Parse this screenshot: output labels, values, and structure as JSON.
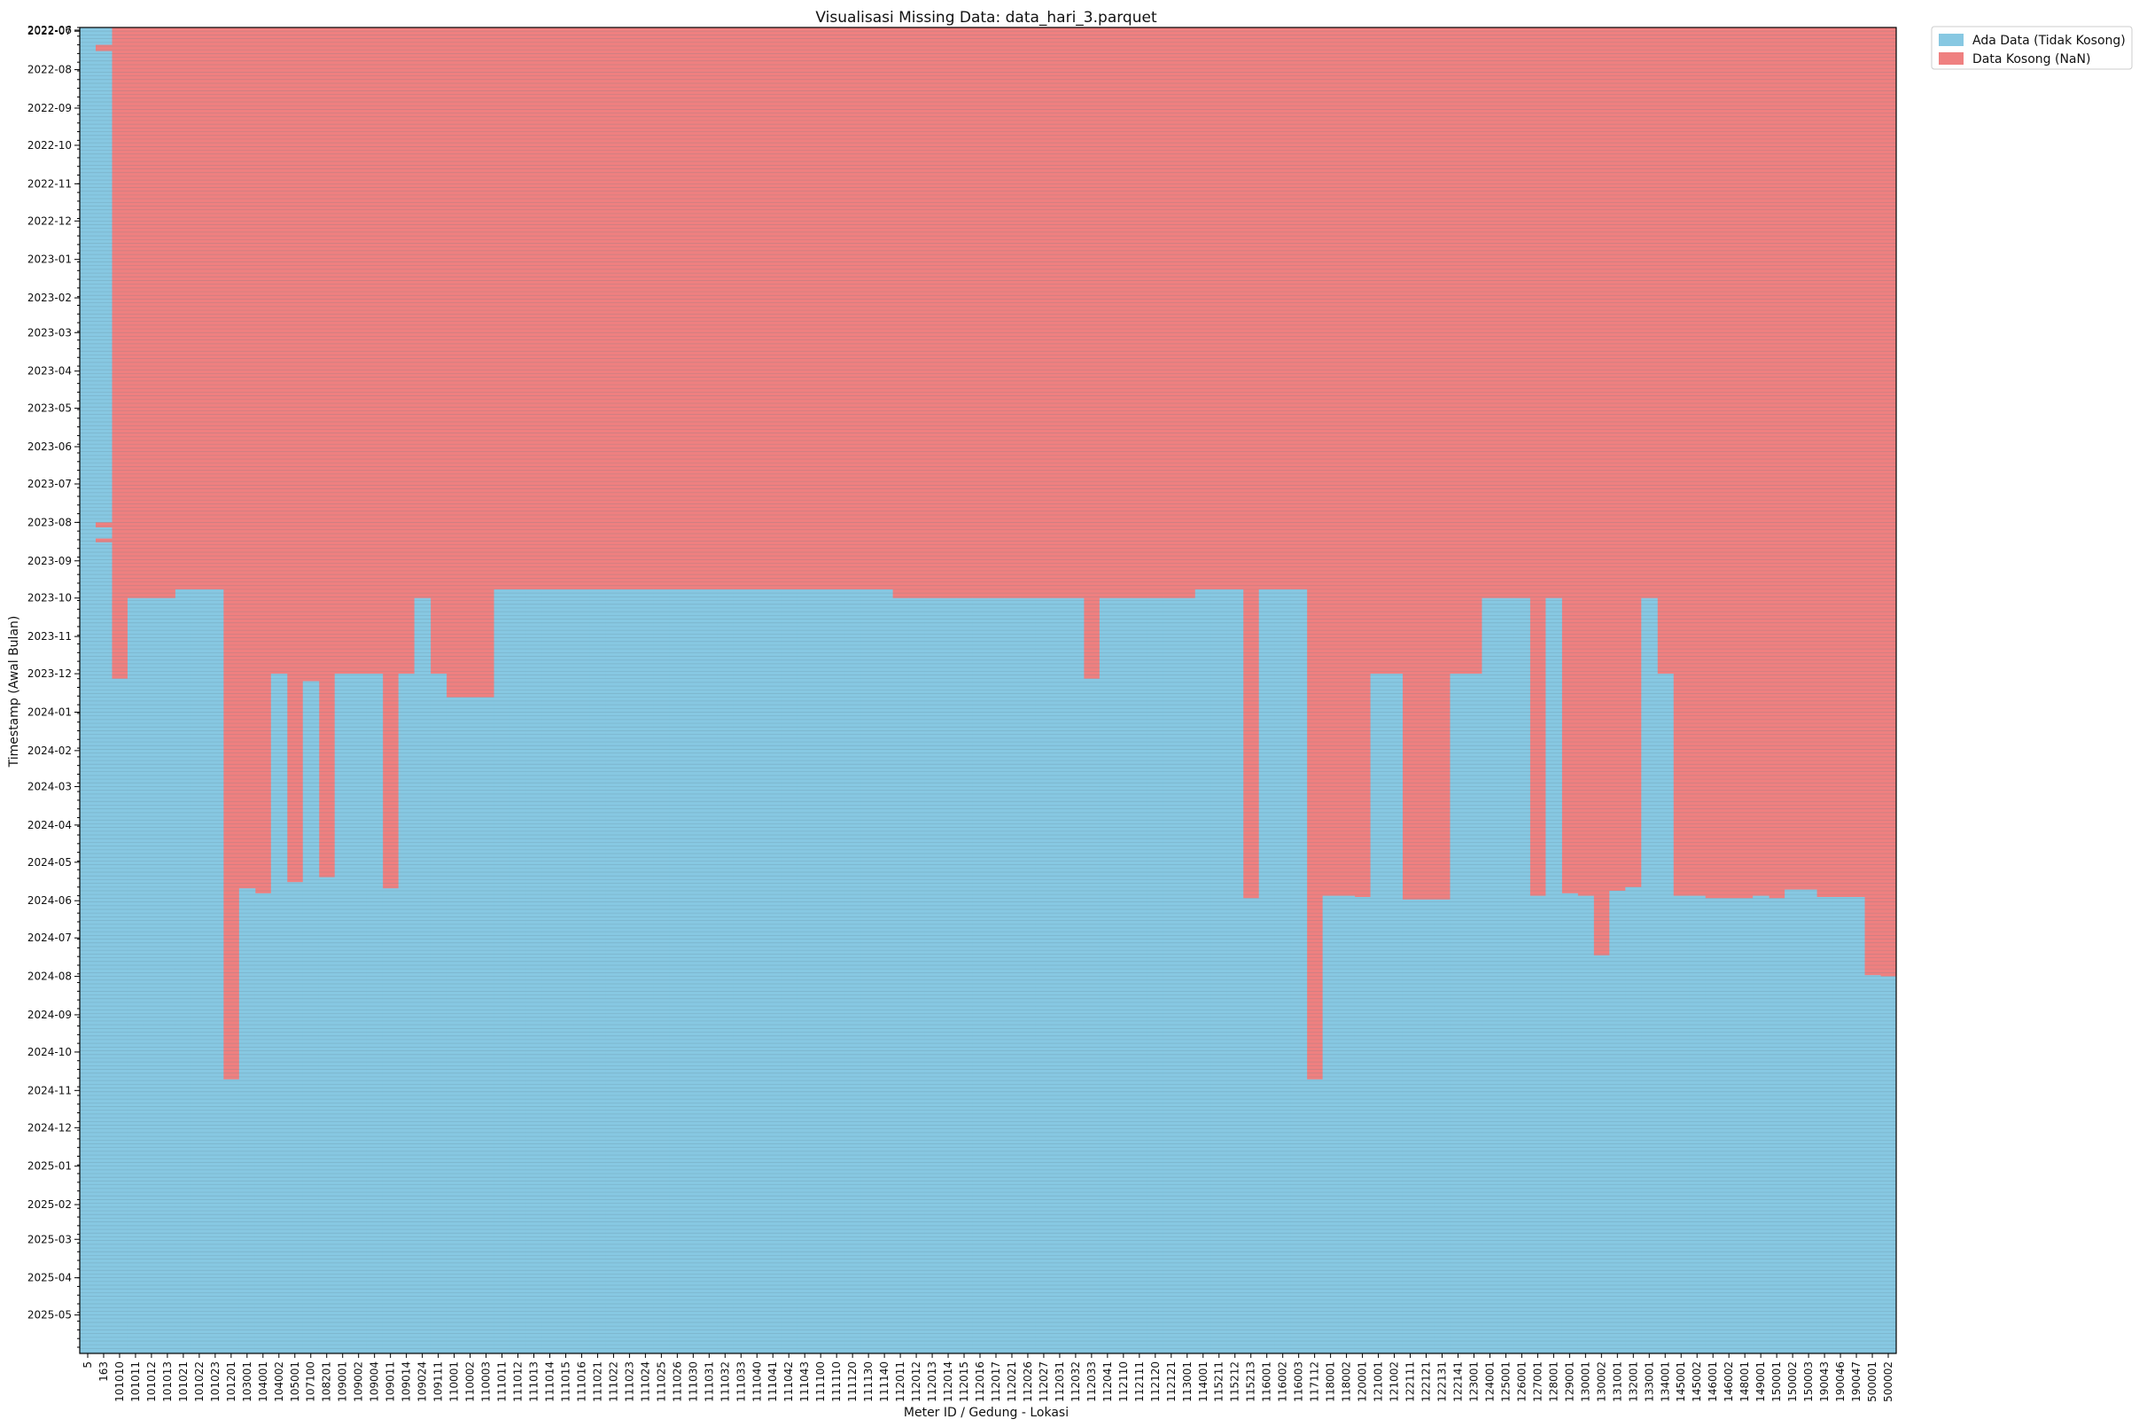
{
  "chart_data": {
    "type": "heatmap",
    "title": "Visualisasi Missing Data: data_hari_3.parquet",
    "xlabel": "Meter ID / Gedung - Lokasi",
    "ylabel": "Timestamp (Awal Bulan)",
    "y_range": [
      "2022-06-28",
      "2025-05-31"
    ],
    "month_ticks": [
      "2022-06",
      "2022-07",
      "2022-08",
      "2022-09",
      "2022-10",
      "2022-11",
      "2022-12",
      "2023-01",
      "2023-02",
      "2023-03",
      "2023-04",
      "2023-05",
      "2023-06",
      "2023-07",
      "2023-08",
      "2023-09",
      "2023-10",
      "2023-11",
      "2023-12",
      "2024-01",
      "2024-02",
      "2024-03",
      "2024-04",
      "2024-05",
      "2024-06",
      "2024-07",
      "2024-08",
      "2024-09",
      "2024-10",
      "2024-11",
      "2024-12",
      "2025-01",
      "2025-02",
      "2025-03",
      "2025-04",
      "2025-05"
    ],
    "columns": [
      "5",
      "163",
      "101010",
      "101011",
      "101012",
      "101013",
      "101021",
      "101022",
      "101023",
      "101201",
      "103001",
      "104001",
      "104002",
      "105001",
      "107100",
      "108201",
      "109001",
      "109002",
      "109004",
      "109011",
      "109014",
      "109024",
      "109111",
      "110001",
      "110002",
      "110003",
      "111011",
      "111012",
      "111013",
      "111014",
      "111015",
      "111016",
      "111021",
      "111022",
      "111023",
      "111024",
      "111025",
      "111026",
      "111030",
      "111031",
      "111032",
      "111033",
      "111040",
      "111041",
      "111042",
      "111043",
      "111100",
      "111110",
      "111120",
      "111130",
      "111140",
      "112011",
      "112012",
      "112013",
      "112014",
      "112015",
      "112016",
      "112017",
      "112021",
      "112026",
      "112027",
      "112031",
      "112032",
      "112033",
      "112041",
      "112110",
      "112111",
      "112120",
      "112121",
      "113001",
      "114001",
      "115211",
      "115212",
      "115213",
      "116001",
      "116002",
      "116003",
      "117112",
      "118001",
      "118002",
      "120001",
      "121001",
      "121002",
      "122111",
      "122121",
      "122131",
      "122141",
      "123001",
      "124001",
      "125001",
      "126001",
      "127001",
      "128001",
      "129001",
      "130001",
      "130002",
      "131001",
      "132001",
      "133001",
      "134001",
      "145001",
      "145002",
      "146001",
      "146002",
      "148001",
      "149001",
      "150001",
      "150002",
      "150003",
      "190043",
      "190046",
      "190047",
      "500001",
      "500002"
    ],
    "data_start": [
      "2022-06-28",
      "2022-06-28",
      "2023-12-05",
      "2023-10-01",
      "2023-10-01",
      "2023-10-01",
      "2023-09-24",
      "2023-09-24",
      "2023-09-24",
      "2024-10-23",
      "2024-05-22",
      "2024-05-26",
      "2023-12-01",
      "2024-05-17",
      "2023-12-07",
      "2024-05-13",
      "2023-12-01",
      "2023-12-01",
      "2023-12-01",
      "2024-05-22",
      "2023-12-01",
      "2023-10-01",
      "2023-12-01",
      "2023-12-20",
      "2023-12-20",
      "2023-12-20",
      "2023-09-24",
      "2023-09-24",
      "2023-09-24",
      "2023-09-24",
      "2023-09-24",
      "2023-09-24",
      "2023-09-24",
      "2023-09-24",
      "2023-09-24",
      "2023-09-24",
      "2023-09-24",
      "2023-09-24",
      "2023-09-24",
      "2023-09-24",
      "2023-09-24",
      "2023-09-24",
      "2023-09-24",
      "2023-09-24",
      "2023-09-24",
      "2023-09-24",
      "2023-09-24",
      "2023-09-24",
      "2023-09-24",
      "2023-09-24",
      "2023-09-24",
      "2023-10-01",
      "2023-10-01",
      "2023-10-01",
      "2023-10-01",
      "2023-10-01",
      "2023-10-01",
      "2023-10-01",
      "2023-10-01",
      "2023-10-01",
      "2023-10-01",
      "2023-10-01",
      "2023-10-01",
      "2023-12-05",
      "2023-10-01",
      "2023-10-01",
      "2023-10-01",
      "2023-10-01",
      "2023-10-01",
      "2023-10-01",
      "2023-09-24",
      "2023-09-24",
      "2023-09-24",
      "2024-05-30",
      "2023-09-24",
      "2023-09-24",
      "2023-09-24",
      "2024-10-23",
      "2024-05-28",
      "2024-05-28",
      "2024-05-29",
      "2023-12-01",
      "2023-12-01",
      "2024-05-31",
      "2024-05-31",
      "2024-05-31",
      "2023-12-01",
      "2023-12-01",
      "2023-10-01",
      "2023-10-01",
      "2023-10-01",
      "2024-05-28",
      "2023-10-01",
      "2024-05-26",
      "2024-05-28",
      "2024-07-15",
      "2024-05-24",
      "2024-05-21",
      "2023-10-01",
      "2023-12-01",
      "2024-05-28",
      "2024-05-28",
      "2024-05-30",
      "2024-05-30",
      "2024-05-30",
      "2024-05-28",
      "2024-05-30",
      "2024-05-23",
      "2024-05-23",
      "2024-05-29",
      "2024-05-29",
      "2024-05-29",
      "2024-07-31",
      "2024-08-01"
    ],
    "extra_data_periods": [
      {
        "column": "5",
        "from": "2022-06-28",
        "to": "2022-10-04"
      },
      {
        "column": "5",
        "from": "2022-10-30",
        "to": "2023-08-09"
      },
      {
        "column": "5",
        "from": "2023-08-16",
        "to": "2025-05-31"
      },
      {
        "column": "163",
        "from": "2022-06-28",
        "to": "2023-10-01"
      }
    ],
    "gap_periods": [
      {
        "column": "163",
        "from": "2022-07-12",
        "to": "2022-07-17"
      },
      {
        "column": "163",
        "from": "2023-08-01",
        "to": "2023-08-05"
      },
      {
        "column": "163",
        "from": "2023-08-14",
        "to": "2023-08-17"
      }
    ],
    "legend": [
      "Ada Data (Tidak Kosong)",
      "Data Kosong (NaN)"
    ],
    "legend_position": "upper-right-outside",
    "colors": {
      "present": "#87c8e2",
      "missing": "#ef8080",
      "row_line_present": "#6a99aa",
      "row_line_missing": "#b8b8b8",
      "border": "#000000"
    },
    "grid": false
  }
}
